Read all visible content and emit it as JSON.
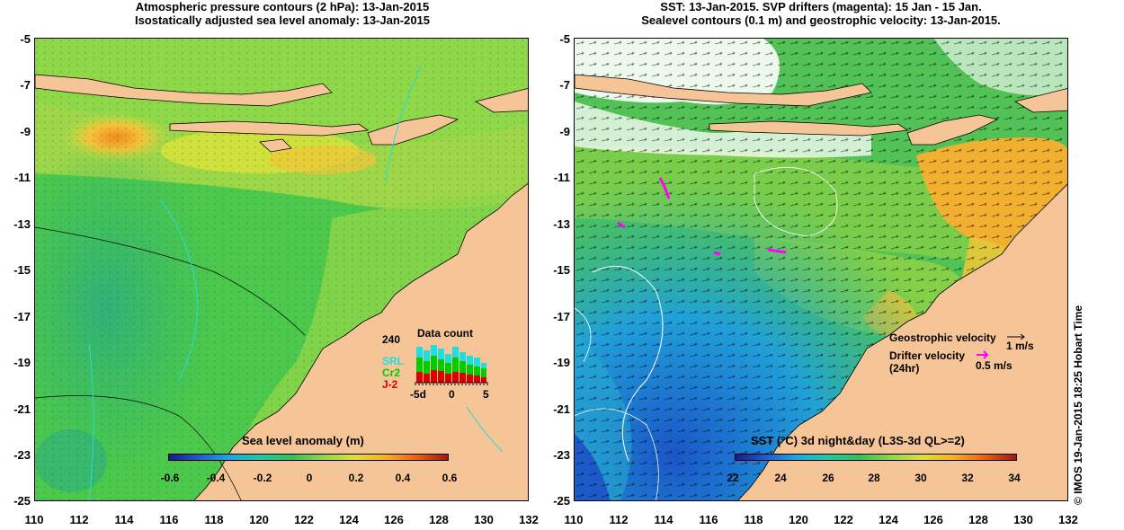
{
  "left_panel": {
    "title_line1": "Atmospheric pressure contours (2 hPa): 13-Jan-2015",
    "title_line2": "Isostatically adjusted sea level anomaly: 13-Jan-2015",
    "colorbar": {
      "title": "Sea level anomaly (m)",
      "labels": [
        "-0.6",
        "-0.4",
        "-0.2",
        "0",
        "0.2",
        "0.4",
        "0.6"
      ]
    },
    "data_count": {
      "title": "Data count",
      "max_label": "240",
      "series": [
        {
          "name": "SRL",
          "color": "#22dddd"
        },
        {
          "name": "Cr2",
          "color": "#00cc00"
        },
        {
          "name": "J-2",
          "color": "#dd0000"
        }
      ],
      "axis_labels": [
        "-5d",
        "0",
        "5"
      ]
    }
  },
  "right_panel": {
    "title_line1": "SST: 13-Jan-2015. SVP drifters (magenta): 15 Jan - 15 Jan.",
    "title_line2": "Sealevel contours (0.1 m) and geostrophic velocity: 13-Jan-2015.",
    "colorbar": {
      "title": "SST (°C) 3d night&day (L3S-3d QL>=2)",
      "labels": [
        "22",
        "24",
        "26",
        "28",
        "30",
        "32",
        "34"
      ]
    },
    "legend": {
      "geo_label": "Geostrophic velocity",
      "geo_scale": "1 m/s",
      "drifter_label_1": "Drifter velocity",
      "drifter_label_2": "(24hr)",
      "drifter_scale": "0.5 m/s"
    }
  },
  "axes": {
    "y_labels": [
      "-5",
      "-7",
      "-9",
      "-11",
      "-13",
      "-15",
      "-17",
      "-19",
      "-21",
      "-23",
      "-25"
    ],
    "x_labels": [
      "110",
      "112",
      "114",
      "116",
      "118",
      "120",
      "122",
      "124",
      "126",
      "128",
      "130",
      "132"
    ]
  },
  "credit": "© IMOS 19-Jan-2015 18:25 Hobart Time",
  "colors": {
    "land": "#f6c597",
    "ocean_green": "#4cc84c",
    "anomaly_high": "#f0a020",
    "sst_cold": "#1e6fd0",
    "drifter": "#ff00ff",
    "contour_white": "#ffffff",
    "contour_cyan": "#22dddd"
  }
}
